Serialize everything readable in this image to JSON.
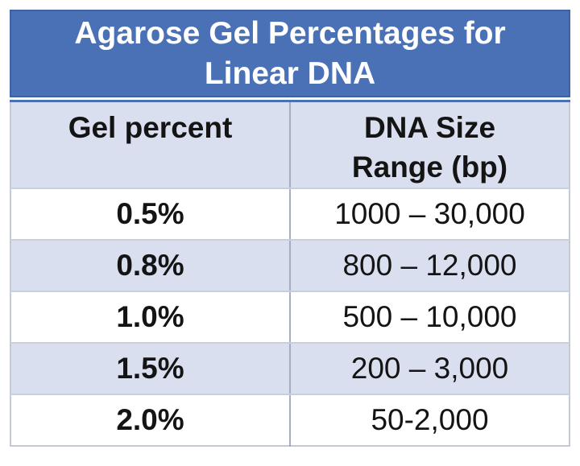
{
  "title": {
    "full": "Agarose Gel Percentages for Linear DNA",
    "line1": "Agarose Gel Percentages for",
    "line2": "Linear DNA"
  },
  "table": {
    "headers": [
      "Gel percent",
      "DNA Size Range (bp)"
    ],
    "rows": [
      {
        "gel_percent": "0.5%",
        "dna_size_range": "1000 – 30,000"
      },
      {
        "gel_percent": "0.8%",
        "dna_size_range": "800 – 12,000"
      },
      {
        "gel_percent": "1.0%",
        "dna_size_range": "500 – 10,000"
      },
      {
        "gel_percent": "1.5%",
        "dna_size_range": "200 – 3,000"
      },
      {
        "gel_percent": "2.0%",
        "dna_size_range": "50-2,000"
      }
    ]
  },
  "chart_data": {
    "type": "table",
    "title": "Agarose Gel Percentages for Linear DNA",
    "columns": [
      "Gel percent",
      "DNA Size Range (bp)"
    ],
    "rows": [
      [
        "0.5%",
        "1000 – 30,000"
      ],
      [
        "0.8%",
        "800 – 12,000"
      ],
      [
        "1.0%",
        "500 – 10,000"
      ],
      [
        "1.5%",
        "200 – 3,000"
      ],
      [
        "2.0%",
        "50-2,000"
      ]
    ]
  },
  "colors": {
    "title_bg": "#4A71B6",
    "title_border": "#3E63A4",
    "band_bg": "#D9DFEF",
    "header_top_border": "#4A71B6",
    "outer_border": "#C4C9D6",
    "row_border": "#C9CEDC",
    "col_border": "#A6ADC2",
    "text_color": "#141414",
    "title_text": "#FFFFFF"
  }
}
